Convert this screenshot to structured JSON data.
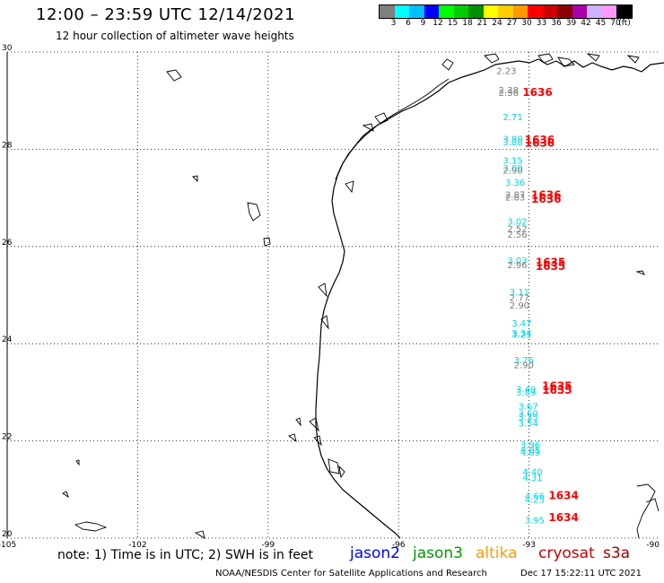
{
  "title": "12:00 – 23:59 UTC 12/14/2021",
  "subtitle": "12 hour collection of altimeter wave heights",
  "legend": {
    "colors": [
      "#7f7f7f",
      "#00ffff",
      "#00bfff",
      "#0000ff",
      "#00ff00",
      "#00cc00",
      "#008f00",
      "#ffff00",
      "#ffcc00",
      "#ff9900",
      "#ff0000",
      "#cc0000",
      "#8b0000",
      "#aa00aa",
      "#ccb3ff",
      "#ff99ff",
      "#000000"
    ],
    "labels": [
      "3",
      "6",
      "9",
      "12",
      "15",
      "18",
      "21",
      "24",
      "27",
      "30",
      "33",
      "36",
      "39",
      "42",
      "45",
      "70",
      "(ft)"
    ]
  },
  "axes": {
    "y_labels": [
      "30",
      "28",
      "26",
      "24",
      "22",
      "20"
    ],
    "x_labels": [
      "-105",
      "-102",
      "-99",
      "-96",
      "-93",
      "-90"
    ]
  },
  "chart_data": {
    "type": "scatter",
    "xlim": [
      -105,
      -90
    ],
    "ylim": [
      20,
      30
    ],
    "grid": true,
    "series": [
      {
        "name": "jason2",
        "color": "#00d8e8",
        "points": [
          {
            "x": -93.6,
            "y": 28.6,
            "label": "2.71"
          },
          {
            "x": -93.6,
            "y": 28.15,
            "label": "3.80"
          },
          {
            "x": -93.6,
            "y": 28.08,
            "label": "3.88"
          },
          {
            "x": -93.6,
            "y": 27.7,
            "label": "3.15"
          },
          {
            "x": -93.6,
            "y": 27.55,
            "label": "3.00"
          },
          {
            "x": -93.55,
            "y": 27.25,
            "label": "3.36"
          },
          {
            "x": -93.5,
            "y": 26.45,
            "label": "3.02"
          },
          {
            "x": -93.5,
            "y": 25.65,
            "label": "3.03"
          },
          {
            "x": -93.45,
            "y": 25.0,
            "label": "3.11"
          },
          {
            "x": -93.4,
            "y": 24.35,
            "label": "3.47"
          },
          {
            "x": -93.4,
            "y": 24.15,
            "label": "3.34"
          },
          {
            "x": -93.4,
            "y": 24.12,
            "label": "3.21"
          },
          {
            "x": -93.35,
            "y": 23.6,
            "label": "3.76"
          },
          {
            "x": -93.3,
            "y": 23.0,
            "label": "3.49"
          },
          {
            "x": -93.3,
            "y": 22.93,
            "label": "3.89"
          },
          {
            "x": -93.25,
            "y": 22.65,
            "label": "3.67"
          },
          {
            "x": -93.25,
            "y": 22.5,
            "label": "3.60"
          },
          {
            "x": -93.25,
            "y": 22.43,
            "label": "3.35"
          },
          {
            "x": -93.25,
            "y": 22.3,
            "label": "3.54"
          },
          {
            "x": -93.2,
            "y": 21.85,
            "label": "3.96"
          },
          {
            "x": -93.2,
            "y": 21.75,
            "label": "4.05"
          },
          {
            "x": -93.2,
            "y": 21.7,
            "label": "4.09"
          },
          {
            "x": -93.15,
            "y": 21.3,
            "label": "4.40"
          },
          {
            "x": -93.15,
            "y": 21.18,
            "label": "4.31"
          },
          {
            "x": -93.1,
            "y": 20.8,
            "label": "4.66"
          },
          {
            "x": -93.1,
            "y": 20.73,
            "label": "4.25"
          },
          {
            "x": -93.1,
            "y": 20.3,
            "label": "3.95"
          }
        ]
      },
      {
        "name": "cryosat",
        "color": "#7a7a7a",
        "points": [
          {
            "x": -93.75,
            "y": 29.55,
            "label": "2.23"
          },
          {
            "x": -93.7,
            "y": 29.15,
            "label": "2.38"
          },
          {
            "x": -93.7,
            "y": 29.1,
            "label": "2.56"
          },
          {
            "x": -93.6,
            "y": 27.5,
            "label": "2.90"
          },
          {
            "x": -93.55,
            "y": 27.0,
            "label": "2.87"
          },
          {
            "x": -93.55,
            "y": 26.95,
            "label": "2.83"
          },
          {
            "x": -93.5,
            "y": 26.3,
            "label": "2.52"
          },
          {
            "x": -93.5,
            "y": 26.18,
            "label": "2.56"
          },
          {
            "x": -93.5,
            "y": 25.55,
            "label": "2.96"
          },
          {
            "x": -93.45,
            "y": 24.88,
            "label": "2.77"
          },
          {
            "x": -93.45,
            "y": 24.72,
            "label": "2.90"
          },
          {
            "x": -93.35,
            "y": 23.5,
            "label": "2.90"
          }
        ]
      },
      {
        "name": "time",
        "color": "#ff0000",
        "points": [
          {
            "x": -93.15,
            "y": 29.1,
            "label": "1636"
          },
          {
            "x": -93.1,
            "y": 28.12,
            "label": "1636"
          },
          {
            "x": -93.1,
            "y": 28.05,
            "label": "1636"
          },
          {
            "x": -92.95,
            "y": 26.98,
            "label": "1636"
          },
          {
            "x": -92.95,
            "y": 26.9,
            "label": "1636"
          },
          {
            "x": -92.85,
            "y": 25.6,
            "label": "1635"
          },
          {
            "x": -92.85,
            "y": 25.52,
            "label": "1635"
          },
          {
            "x": -92.7,
            "y": 23.05,
            "label": "1635"
          },
          {
            "x": -92.7,
            "y": 22.97,
            "label": "1635"
          },
          {
            "x": -92.55,
            "y": 20.8,
            "label": "1634"
          },
          {
            "x": -92.55,
            "y": 20.35,
            "label": "1634"
          }
        ]
      }
    ]
  },
  "footer": {
    "note": "note: 1) Time is in UTC; 2) SWH is in feet",
    "satellites": [
      {
        "name": "jason2",
        "color": "#0000ff"
      },
      {
        "name": "jason3",
        "color": "#009900"
      },
      {
        "name": "altika",
        "color": "#ff9900"
      },
      {
        "name": "cryosat",
        "color": "#cc0000"
      },
      {
        "name": "s3a",
        "color": "#990000"
      }
    ],
    "credit": "NOAA/NESDIS Center for Satellite Applications and Research",
    "date": "Dec 17 15:22:11 UTC 2021"
  }
}
